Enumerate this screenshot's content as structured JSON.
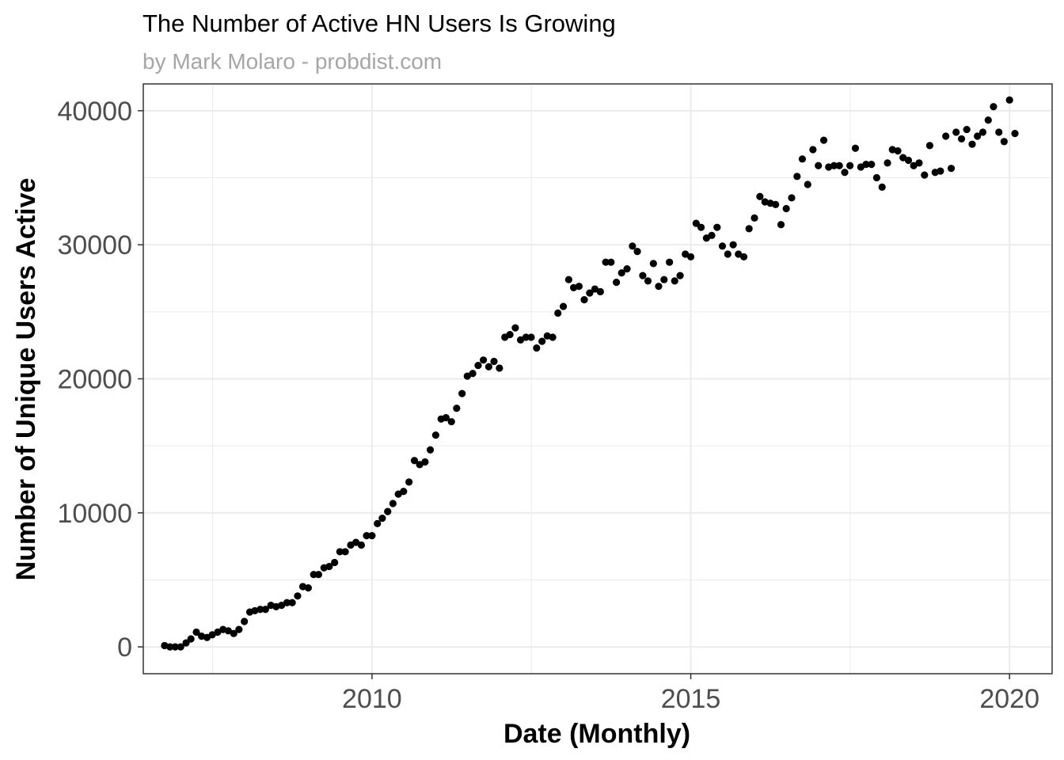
{
  "chart_data": {
    "type": "scatter",
    "title": "The Number of Active HN Users Is Growing",
    "subtitle": "by Mark Molaro - probdist.com",
    "xlabel": "Date (Monthly)",
    "ylabel": "Number of Unique Users Active",
    "xlim": [
      "2006-06-01",
      "2020-09-01"
    ],
    "ylim": [
      -2000,
      42000
    ],
    "x_ticks": [
      "2010-01-01",
      "2015-01-01",
      "2020-01-01"
    ],
    "x_tick_labels": [
      "2010",
      "2015",
      "2020"
    ],
    "y_ticks": [
      0,
      10000,
      20000,
      30000,
      40000
    ],
    "y_tick_labels": [
      "0",
      "10000",
      "20000",
      "30000",
      "40000"
    ],
    "grid": true,
    "colors": {
      "points": "#000000",
      "grid": "#ebebeb",
      "panel_border": "#333333"
    },
    "series": [
      {
        "x": [
          "2006-10-01",
          "2006-11-01",
          "2006-12-01",
          "2007-01-01",
          "2007-02-01",
          "2007-03-01",
          "2007-04-01",
          "2007-05-01",
          "2007-06-01",
          "2007-07-01",
          "2007-08-01",
          "2007-09-01",
          "2007-10-01",
          "2007-11-01",
          "2007-12-01",
          "2008-01-01",
          "2008-02-01",
          "2008-03-01",
          "2008-04-01",
          "2008-05-01",
          "2008-06-01",
          "2008-07-01",
          "2008-08-01",
          "2008-09-01",
          "2008-10-01",
          "2008-11-01",
          "2008-12-01",
          "2009-01-01",
          "2009-02-01",
          "2009-03-01",
          "2009-04-01",
          "2009-05-01",
          "2009-06-01",
          "2009-07-01",
          "2009-08-01",
          "2009-09-01",
          "2009-10-01",
          "2009-11-01",
          "2009-12-01",
          "2010-01-01",
          "2010-02-01",
          "2010-03-01",
          "2010-04-01",
          "2010-05-01",
          "2010-06-01",
          "2010-07-01",
          "2010-08-01",
          "2010-09-01",
          "2010-10-01",
          "2010-11-01",
          "2010-12-01",
          "2011-01-01",
          "2011-02-01",
          "2011-03-01",
          "2011-04-01",
          "2011-05-01",
          "2011-06-01",
          "2011-07-01",
          "2011-08-01",
          "2011-09-01",
          "2011-10-01",
          "2011-11-01",
          "2011-12-01",
          "2012-01-01",
          "2012-02-01",
          "2012-03-01",
          "2012-04-01",
          "2012-05-01",
          "2012-06-01",
          "2012-07-01",
          "2012-08-01",
          "2012-09-01",
          "2012-10-01",
          "2012-11-01",
          "2012-12-01",
          "2013-01-01",
          "2013-02-01",
          "2013-03-01",
          "2013-04-01",
          "2013-05-01",
          "2013-06-01",
          "2013-07-01",
          "2013-08-01",
          "2013-09-01",
          "2013-10-01",
          "2013-11-01",
          "2013-12-01",
          "2014-01-01",
          "2014-02-01",
          "2014-03-01",
          "2014-04-01",
          "2014-05-01",
          "2014-06-01",
          "2014-07-01",
          "2014-08-01",
          "2014-09-01",
          "2014-10-01",
          "2014-11-01",
          "2014-12-01",
          "2015-01-01",
          "2015-02-01",
          "2015-03-01",
          "2015-04-01",
          "2015-05-01",
          "2015-06-01",
          "2015-07-01",
          "2015-08-01",
          "2015-09-01",
          "2015-10-01",
          "2015-11-01",
          "2015-12-01",
          "2016-01-01",
          "2016-02-01",
          "2016-03-01",
          "2016-04-01",
          "2016-05-01",
          "2016-06-01",
          "2016-07-01",
          "2016-08-01",
          "2016-09-01",
          "2016-10-01",
          "2016-11-01",
          "2016-12-01",
          "2017-01-01",
          "2017-02-01",
          "2017-03-01",
          "2017-04-01",
          "2017-05-01",
          "2017-06-01",
          "2017-07-01",
          "2017-08-01",
          "2017-09-01",
          "2017-10-01",
          "2017-11-01",
          "2017-12-01",
          "2018-01-01",
          "2018-02-01",
          "2018-03-01",
          "2018-04-01",
          "2018-05-01",
          "2018-06-01",
          "2018-07-01",
          "2018-08-01",
          "2018-09-01",
          "2018-10-01",
          "2018-11-01",
          "2018-12-01",
          "2019-01-01",
          "2019-02-01",
          "2019-03-01",
          "2019-04-01",
          "2019-05-01",
          "2019-06-01",
          "2019-07-01",
          "2019-08-01",
          "2019-09-01",
          "2019-10-01",
          "2019-11-01",
          "2019-12-01",
          "2020-01-01",
          "2020-02-01"
        ],
        "y": [
          100,
          0,
          0,
          0,
          300,
          600,
          1100,
          800,
          700,
          900,
          1100,
          1300,
          1200,
          1000,
          1300,
          1900,
          2600,
          2700,
          2800,
          2800,
          3100,
          3000,
          3100,
          3300,
          3300,
          3800,
          4500,
          4400,
          5400,
          5400,
          5900,
          6000,
          6300,
          7100,
          7100,
          7600,
          7800,
          7600,
          8300,
          8300,
          9200,
          9600,
          10100,
          10700,
          11400,
          11600,
          12300,
          13900,
          13600,
          13800,
          14700,
          15800,
          17000,
          17100,
          16800,
          17800,
          18900,
          20200,
          20400,
          21000,
          21400,
          20900,
          21300,
          20800,
          23100,
          23300,
          23800,
          22900,
          23100,
          23100,
          22300,
          22800,
          23200,
          23100,
          24900,
          25400,
          27400,
          26800,
          26900,
          25900,
          26400,
          26700,
          26500,
          28700,
          28700,
          27200,
          27900,
          28200,
          29900,
          29500,
          27700,
          27300,
          28600,
          26900,
          27400,
          28700,
          27300,
          27700,
          29300,
          29100,
          31600,
          31300,
          30500,
          30700,
          31300,
          29900,
          29300,
          30000,
          29300,
          29100,
          31200,
          32000,
          33600,
          33200,
          33100,
          33000,
          31500,
          32700,
          33500,
          35100,
          36400,
          34500,
          37100,
          35900,
          37800,
          35800,
          35900,
          35900,
          35400,
          35900,
          37200,
          35800,
          36000,
          36000,
          35000,
          34300,
          36100,
          37100,
          37000,
          36500,
          36300,
          35900,
          36100,
          35200,
          37400,
          35400,
          35500,
          38100,
          35700,
          38400,
          37900,
          38600,
          37500,
          38100,
          38400,
          39300,
          40300,
          38400,
          37700,
          40800,
          38300
        ]
      }
    ]
  }
}
